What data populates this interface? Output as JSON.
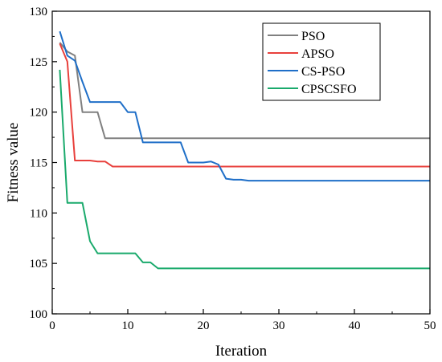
{
  "chart_data": {
    "type": "line",
    "title": "",
    "xlabel": "Iteration",
    "ylabel": "Fitness value",
    "xlim": [
      0,
      50
    ],
    "ylim": [
      100,
      130
    ],
    "xticks": [
      0,
      10,
      20,
      30,
      40,
      50
    ],
    "yticks": [
      100,
      105,
      110,
      115,
      120,
      125,
      130
    ],
    "minor_ticks": true,
    "grid": false,
    "legend_position": "top-right",
    "series": [
      {
        "name": "PSO",
        "color": "#808080",
        "points": [
          [
            1,
            126.9
          ],
          [
            2,
            126.0
          ],
          [
            3,
            125.6
          ],
          [
            4,
            120.0
          ],
          [
            5,
            120.0
          ],
          [
            6,
            120.0
          ],
          [
            7,
            117.4
          ],
          [
            50,
            117.4
          ]
        ]
      },
      {
        "name": "APSO",
        "color": "#e8403c",
        "points": [
          [
            1,
            126.8
          ],
          [
            2,
            125.0
          ],
          [
            3,
            115.2
          ],
          [
            4,
            115.2
          ],
          [
            5,
            115.2
          ],
          [
            6,
            115.1
          ],
          [
            7,
            115.1
          ],
          [
            8,
            114.6
          ],
          [
            50,
            114.6
          ]
        ]
      },
      {
        "name": "CS-PSO",
        "color": "#1f6fc8",
        "points": [
          [
            1,
            128.0
          ],
          [
            2,
            125.6
          ],
          [
            3,
            125.1
          ],
          [
            4,
            123.0
          ],
          [
            5,
            121.0
          ],
          [
            9,
            121.0
          ],
          [
            10,
            120.0
          ],
          [
            11,
            120.0
          ],
          [
            12,
            117.0
          ],
          [
            17,
            117.0
          ],
          [
            18,
            115.0
          ],
          [
            20,
            115.0
          ],
          [
            21,
            115.1
          ],
          [
            22,
            114.8
          ],
          [
            23,
            113.4
          ],
          [
            24,
            113.3
          ],
          [
            25,
            113.3
          ],
          [
            26,
            113.2
          ],
          [
            50,
            113.2
          ]
        ]
      },
      {
        "name": "CPSCSFO",
        "color": "#1aaa6c",
        "points": [
          [
            1,
            124.2
          ],
          [
            2,
            111.0
          ],
          [
            3,
            111.0
          ],
          [
            4,
            111.0
          ],
          [
            5,
            107.2
          ],
          [
            6,
            106.0
          ],
          [
            11,
            106.0
          ],
          [
            12,
            105.1
          ],
          [
            13,
            105.1
          ],
          [
            14,
            104.5
          ],
          [
            50,
            104.5
          ]
        ]
      }
    ]
  }
}
